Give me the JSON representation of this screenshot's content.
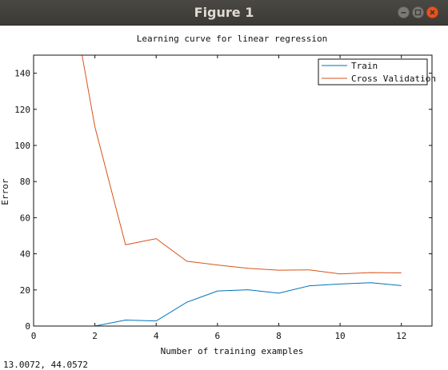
{
  "window": {
    "title": "Figure 1",
    "controls": [
      "minimize-icon",
      "maximize-icon",
      "close-icon"
    ],
    "close_color": "#e95420"
  },
  "status_bar": {
    "coordinates": "13.0072, 44.0572"
  },
  "chart_data": {
    "type": "line",
    "title": "Learning curve for linear regression",
    "xlabel": "Number of training examples",
    "ylabel": "Error",
    "xlim": [
      0,
      13
    ],
    "ylim": [
      0,
      150
    ],
    "xticks": [
      0,
      2,
      4,
      6,
      8,
      10,
      12
    ],
    "yticks": [
      0,
      20,
      40,
      60,
      80,
      100,
      120,
      140
    ],
    "grid": false,
    "legend_position": "top-right",
    "x": [
      1,
      2,
      3,
      4,
      5,
      6,
      7,
      8,
      9,
      10,
      11,
      12
    ],
    "series": [
      {
        "name": "Train",
        "color": "#0072bd",
        "values": [
          0,
          0,
          3.3,
          2.8,
          13.2,
          19.4,
          20.1,
          18.2,
          22.3,
          23.3,
          24.0,
          22.4
        ]
      },
      {
        "name": "Cross Validation",
        "color": "#d95319",
        "values": [
          205.1,
          110.3,
          45.0,
          48.4,
          35.9,
          33.8,
          31.97,
          30.9,
          31.1,
          28.9,
          29.6,
          29.4
        ]
      }
    ]
  }
}
